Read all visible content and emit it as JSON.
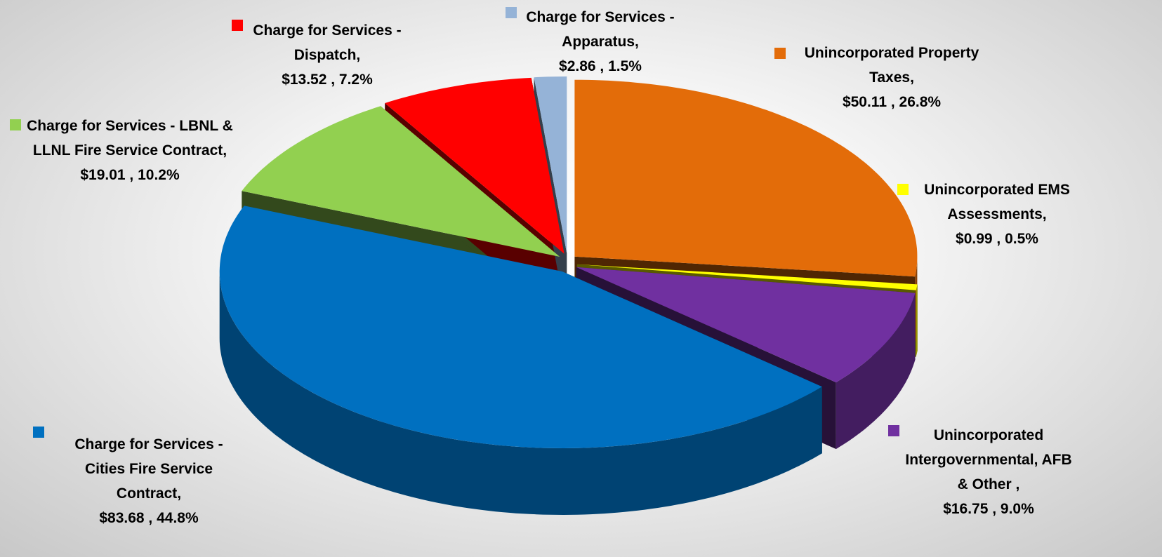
{
  "chart_data": {
    "type": "pie3d",
    "categories": [
      "Unincorporated Property Taxes,",
      "Unincorporated EMS Assessments,",
      "Unincorporated Intergovernmental, AFB & Other ,",
      "Charge for Services - Cities Fire Service Contract,",
      "Charge for Services - LBNL & LLNL Fire Service Contract,",
      "Charge for Services - Dispatch,",
      "Charge for Services - Apparatus,"
    ],
    "values": [
      50.11,
      0.99,
      16.75,
      83.68,
      19.01,
      13.52,
      2.86
    ],
    "value_labels": [
      "$50.11 , 26.8%",
      "$0.99 , 0.5%",
      "$16.75 , 9.0%",
      "$83.68 , 44.8%",
      "$19.01 , 10.2%",
      "$13.52 , 7.2%",
      "$2.86 , 1.5%"
    ],
    "colors": [
      "#e36c09",
      "#ffff00",
      "#7030a0",
      "#0070c0",
      "#92d050",
      "#ff0000",
      "#95b3d7"
    ]
  }
}
